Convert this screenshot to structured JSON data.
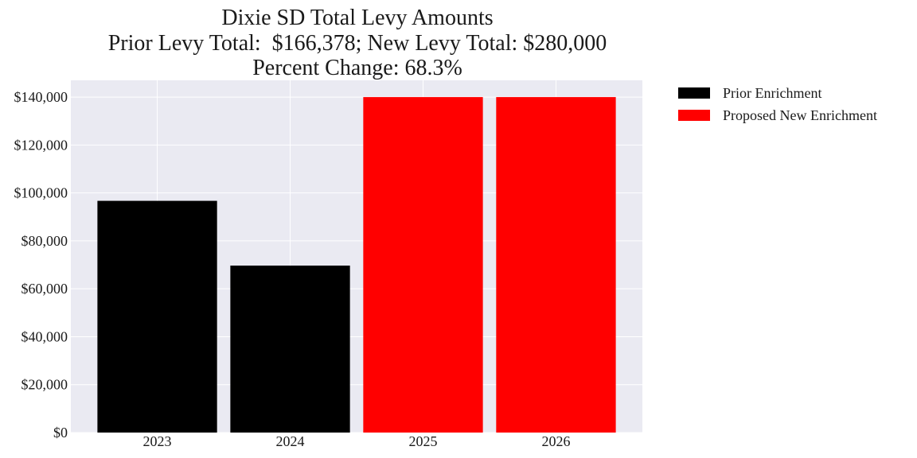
{
  "chart_data": {
    "type": "bar",
    "title": "Dixie SD Total Levy Amounts",
    "subtitle": "Prior Levy Total:  $166,378; New Levy Total: $280,000",
    "subtitle2": "Percent Change: 68.3%",
    "categories": [
      "2023",
      "2024",
      "2025",
      "2026"
    ],
    "series": [
      {
        "name": "Prior Enrichment",
        "values": [
          96700,
          69678,
          null,
          null
        ],
        "color": "#000000"
      },
      {
        "name": "Proposed New Enrichment",
        "values": [
          null,
          null,
          140000,
          140000
        ],
        "color": "#ff0000"
      }
    ],
    "xlabel": "",
    "ylabel": "",
    "ylim": [
      0,
      147000
    ],
    "yticks": [
      0,
      20000,
      40000,
      60000,
      80000,
      100000,
      120000,
      140000
    ],
    "ytick_labels": [
      "$0",
      "$20,000",
      "$40,000",
      "$60,000",
      "$80,000",
      "$100,000",
      "$120,000",
      "$140,000"
    ],
    "grid": true,
    "legend_placement": "outside-top-right",
    "plot_background": "#eaeaf2"
  }
}
